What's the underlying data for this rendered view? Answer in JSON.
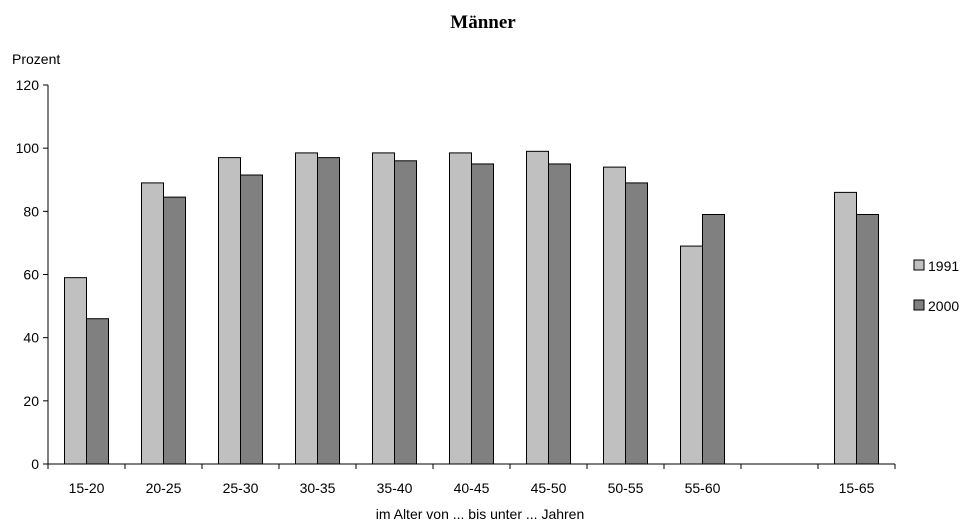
{
  "chart_data": {
    "type": "bar",
    "title": "Männer",
    "ylabel": "Prozent",
    "xlabel": "im Alter von ... bis unter ... Jahren",
    "ylim": [
      0,
      120
    ],
    "yticks": [
      0,
      20,
      40,
      60,
      80,
      100,
      120
    ],
    "categories": [
      "15-20",
      "20-25",
      "25-30",
      "30-35",
      "35-40",
      "40-45",
      "45-50",
      "50-55",
      "55-60",
      "",
      "15-65"
    ],
    "series": [
      {
        "name": "1991",
        "color": "#c0c0c0",
        "values": [
          59,
          89,
          97,
          98.5,
          98.5,
          98.5,
          99,
          94,
          69,
          null,
          86
        ]
      },
      {
        "name": "2000",
        "color": "#808080",
        "values": [
          46,
          84.5,
          91.5,
          97,
          96,
          95,
          95,
          89,
          79,
          null,
          79
        ]
      }
    ],
    "legend": "right",
    "grid": false
  }
}
